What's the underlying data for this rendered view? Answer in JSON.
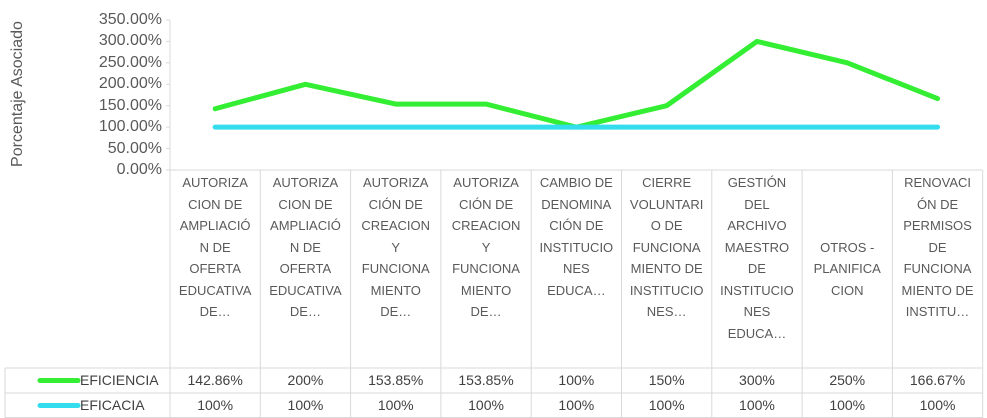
{
  "chart_data": {
    "type": "line",
    "y_label": "Porcentaje Asociado",
    "categories": [
      "AUTORIZACION DE AMPLIACIÓN DE OFERTA EDUCATIVA DE…",
      "AUTORIZACION DE AMPLIACIÓN DE OFERTA EDUCATIVA DE…",
      "AUTORIZACIÓN DE CREACION Y FUNCIONAMIENTO DE…",
      "AUTORIZACIÓN DE CREACION Y FUNCIONAMIENTO DE…",
      "CAMBIO DE DENOMINACIÓN DE INSTITUCIONES EDUCA…",
      "CIERRE VOLUNTARIO DE FUNCIONAMIENTO DE INSTITUCIONES…",
      "GESTIÓN DEL ARCHIVO MAESTRO DE INSTITUCIONES EDUCA…",
      "OTROS - PLANIFICACION",
      "RENOVACIÓN DE PERMISOS DE FUNCIONAMIENTO DE INSTITU…"
    ],
    "series": [
      {
        "name": "EFICIENCIA",
        "color": "#33ee33",
        "values": [
          142.86,
          200,
          153.85,
          153.85,
          100,
          150,
          300,
          250,
          166.67
        ],
        "value_labels": [
          "142.86%",
          "200%",
          "153.85%",
          "153.85%",
          "100%",
          "150%",
          "300%",
          "250%",
          "166.67%"
        ]
      },
      {
        "name": "EFICACIA",
        "color": "#33ddee",
        "values": [
          100,
          100,
          100,
          100,
          100,
          100,
          100,
          100,
          100
        ],
        "value_labels": [
          "100%",
          "100%",
          "100%",
          "100%",
          "100%",
          "100%",
          "100%",
          "100%",
          "100%"
        ]
      }
    ],
    "ylim": [
      0,
      350
    ],
    "yticks": [
      {
        "value": 0,
        "label": "0.00%"
      },
      {
        "value": 50,
        "label": "50.00%"
      },
      {
        "value": 100,
        "label": "100.00%"
      },
      {
        "value": 150,
        "label": "150.00%"
      },
      {
        "value": 200,
        "label": "200.00%"
      },
      {
        "value": 250,
        "label": "250.00%"
      },
      {
        "value": 300,
        "label": "300.00%"
      },
      {
        "value": 350,
        "label": "350.00%"
      }
    ],
    "grid": false
  }
}
